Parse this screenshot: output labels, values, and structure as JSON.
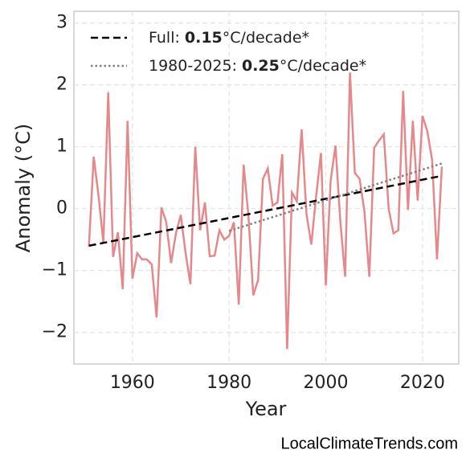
{
  "chart_data": {
    "type": "line",
    "xlabel": "Year",
    "ylabel": "Anomaly (°C)",
    "watermark": "LocalClimateTrends.com",
    "xlim": [
      1947.9,
      2027.5
    ],
    "xticks": [
      1960,
      1980,
      2000,
      2020
    ],
    "ylim": [
      -2.51,
      3.19
    ],
    "yticks": [
      {
        "value": -2,
        "label": "−2"
      },
      {
        "value": -1,
        "label": "−1"
      },
      0,
      1,
      2,
      3
    ],
    "grid": true,
    "series": [
      {
        "color": "#e5888b",
        "x": [
          1951,
          1952,
          1953,
          1954,
          1955,
          1956,
          1957,
          1958,
          1959,
          1960,
          1961,
          1962,
          1963,
          1964,
          1965,
          1966,
          1967,
          1968,
          1969,
          1970,
          1971,
          1972,
          1973,
          1974,
          1975,
          1976,
          1977,
          1978,
          1979,
          1980,
          1981,
          1982,
          1983,
          1984,
          1985,
          1986,
          1987,
          1988,
          1989,
          1990,
          1991,
          1992,
          1993,
          1994,
          1995,
          1996,
          1997,
          1998,
          1999,
          2000,
          2001,
          2002,
          2003,
          2004,
          2005,
          2006,
          2007,
          2008,
          2009,
          2010,
          2011,
          2012,
          2013,
          2014,
          2015,
          2016,
          2017,
          2018,
          2019,
          2020,
          2021,
          2022,
          2023,
          2024
        ],
        "values": [
          -0.61,
          0.84,
          0.2,
          -0.55,
          1.88,
          -0.78,
          -0.38,
          -1.3,
          1.42,
          -1.13,
          -0.72,
          -0.82,
          -0.82,
          -0.9,
          -1.76,
          0.02,
          -0.22,
          -0.88,
          -0.4,
          -0.1,
          -0.72,
          -1.22,
          1.0,
          -0.35,
          0.1,
          -0.77,
          -0.76,
          -0.35,
          -0.5,
          -0.44,
          -0.22,
          -1.55,
          0.71,
          -0.12,
          -1.4,
          -1.15,
          0.48,
          0.65,
          0.05,
          0.1,
          0.88,
          -2.27,
          0.26,
          0.12,
          1.28,
          -0.08,
          -0.58,
          0.2,
          0.9,
          -1.24,
          0.45,
          1.02,
          -0.2,
          -1.1,
          2.2,
          0.58,
          0.48,
          -0.05,
          -1.1,
          0.98,
          1.1,
          1.2,
          0.0,
          -0.4,
          -0.35,
          1.9,
          -0.02,
          1.42,
          0.13,
          1.5,
          1.25,
          0.78,
          -0.82,
          0.68
        ]
      }
    ],
    "trend_lines": [
      {
        "label_prefix": "Full:",
        "rate": 0.15,
        "label_suffix": "°C/decade*",
        "color": "#000000",
        "dash": "dashed",
        "x": [
          1951,
          2024
        ],
        "values": [
          -0.6,
          0.53
        ]
      },
      {
        "label_prefix": "1980-2025:",
        "rate": 0.25,
        "label_suffix": "°C/decade*",
        "color": "#808080",
        "dash": "dotted",
        "x": [
          1980,
          2024
        ],
        "values": [
          -0.36,
          0.73
        ]
      }
    ]
  }
}
